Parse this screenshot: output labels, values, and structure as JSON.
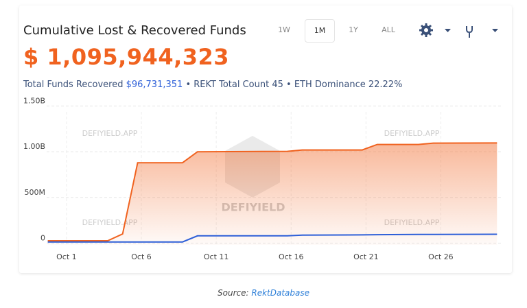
{
  "header": {
    "title": "Cumulative Lost & Recovered Funds",
    "total": "$ 1,095,944,323",
    "ranges": [
      "1W",
      "1M",
      "1Y",
      "ALL"
    ],
    "active_range": "1M",
    "stats": {
      "recovered_label": "Total Funds Recovered",
      "recovered_value": "$96,731,351",
      "separator": "•",
      "count": "REKT Total Count 45",
      "dominance": "ETH Dominance 22.22%"
    }
  },
  "chart_data": {
    "type": "line",
    "watermarks": [
      "DEFIYIELD.APP",
      "DEFIYIELD.APP",
      "DEFIYIELD.APP",
      "DEFIYIELD.APP",
      "DEFIYIELD"
    ],
    "x": [
      -0.25,
      3.75,
      4.75,
      5.75,
      8.75,
      9.75,
      15.75,
      16.75,
      20.75,
      21.75,
      24.5,
      25.5,
      29.75
    ],
    "xlim": [
      -0.6,
      30.7
    ],
    "xticks": [
      {
        "value": 1,
        "label": "Oct 1"
      },
      {
        "value": 6,
        "label": "Oct 6"
      },
      {
        "value": 11,
        "label": "Oct 11"
      },
      {
        "value": 16,
        "label": "Oct 16"
      },
      {
        "value": 21,
        "label": "Oct 21"
      },
      {
        "value": 26,
        "label": "Oct 26"
      }
    ],
    "ylim": [
      -20000000,
      1550000000
    ],
    "yticks": [
      {
        "value": 0,
        "label": "0"
      },
      {
        "value": 500000000,
        "label": "500M"
      },
      {
        "value": 1000000000,
        "label": "1.00B"
      },
      {
        "value": 1500000000,
        "label": "1.50B"
      }
    ],
    "grid": true,
    "series": [
      {
        "name": "Lost",
        "color": "#f0621f",
        "fill": true,
        "values": [
          25000000,
          25000000,
          100000000,
          880000000,
          880000000,
          1000000000,
          1005000000,
          1020000000,
          1020000000,
          1080000000,
          1080000000,
          1095000000,
          1095944323
        ]
      },
      {
        "name": "Recovered",
        "color": "#2d5fd8",
        "fill": false,
        "values": [
          12000000,
          12000000,
          12000000,
          12000000,
          12000000,
          79000000,
          80000000,
          87000000,
          90000000,
          92000000,
          94000000,
          95000000,
          96731351
        ]
      }
    ]
  },
  "footer": {
    "label": "Source:",
    "link": "RektDatabase"
  }
}
